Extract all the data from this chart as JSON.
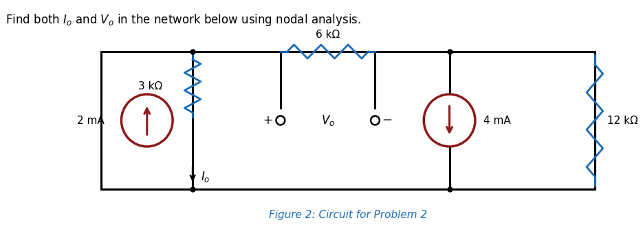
{
  "title": "Find both $I_o$ and $V_o$ in the network below using nodal analysis.",
  "caption": "Figure 2: Circuit for Problem 2",
  "bg_color": "#ffffff",
  "wire_color": "#000000",
  "resistor_color_3k": "#1a6bb5",
  "resistor_color_6k": "#1a6bb5",
  "resistor_color_12k": "#1a6bb5",
  "source_border_color": "#8b1a1a",
  "source_fill_color": "#ffffff",
  "arrow_color": "#8b1a1a",
  "label_2mA": "2 mA",
  "label_4mA": "4 mA",
  "label_3k": "3 kΩ",
  "label_6k": "6 kΩ",
  "label_12k": "12 kΩ",
  "label_Vo": "$V_o$",
  "label_Io": "$I_o$",
  "label_plus": "+",
  "label_minus": "−"
}
